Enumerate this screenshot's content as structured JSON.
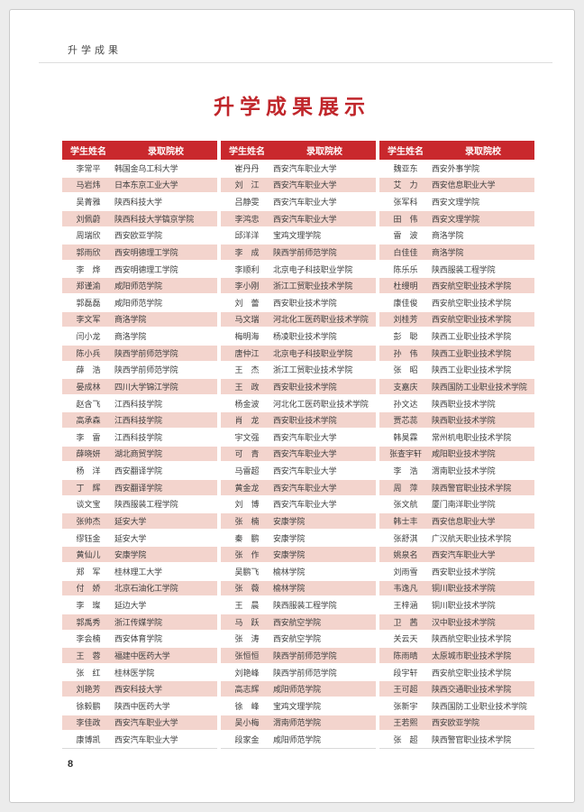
{
  "page": {
    "header_label": "升学成果",
    "title": "升学成果展示",
    "page_number": "8"
  },
  "table_headers": {
    "name": "学生姓名",
    "school": "录取院校"
  },
  "colors": {
    "accent_red": "#c0262b",
    "header_bar_red": "#c9282d",
    "row_pink": "#f3d4cd"
  },
  "columns": [
    {
      "rows": [
        {
          "name": "李常平",
          "school": "韩国金乌工科大学"
        },
        {
          "name": "马岩炜",
          "school": "日本东京工业大学"
        },
        {
          "name": "吴菁雅",
          "school": "陕西科技大学"
        },
        {
          "name": "刘佩蔚",
          "school": "陕西科技大学镐京学院"
        },
        {
          "name": "周瑞欣",
          "school": "西安欧亚学院"
        },
        {
          "name": "郭雨欣",
          "school": "西安明德理工学院"
        },
        {
          "name": "李　烨",
          "school": "西安明德理工学院"
        },
        {
          "name": "郑谨渝",
          "school": "咸阳师范学院"
        },
        {
          "name": "郭磊磊",
          "school": "咸阳师范学院"
        },
        {
          "name": "李文军",
          "school": "商洛学院"
        },
        {
          "name": "闫小龙",
          "school": "商洛学院"
        },
        {
          "name": "陈小兵",
          "school": "陕西学前师范学院"
        },
        {
          "name": "薛　浩",
          "school": "陕西学前师范学院"
        },
        {
          "name": "晏成林",
          "school": "四川大学锦江学院"
        },
        {
          "name": "赵含飞",
          "school": "江西科技学院"
        },
        {
          "name": "高承森",
          "school": "江西科技学院"
        },
        {
          "name": "李　雷",
          "school": "江西科技学院"
        },
        {
          "name": "薛晓妍",
          "school": "湖北商贸学院"
        },
        {
          "name": "杨　洋",
          "school": "西安翻译学院"
        },
        {
          "name": "丁　辉",
          "school": "西安翻译学院"
        },
        {
          "name": "谈文宝",
          "school": "陕西服装工程学院"
        },
        {
          "name": "张帅杰",
          "school": "延安大学"
        },
        {
          "name": "缪钰金",
          "school": "延安大学"
        },
        {
          "name": "黄仙儿",
          "school": "安康学院"
        },
        {
          "name": "郑　军",
          "school": "桂林理工大学"
        },
        {
          "name": "付　娇",
          "school": "北京石油化工学院"
        },
        {
          "name": "李　璨",
          "school": "延边大学"
        },
        {
          "name": "郭禹秀",
          "school": "浙江传媒学院"
        },
        {
          "name": "李会楠",
          "school": "西安体育学院"
        },
        {
          "name": "王　蓉",
          "school": "福建中医药大学"
        },
        {
          "name": "张　红",
          "school": "桂林医学院"
        },
        {
          "name": "刘艳芳",
          "school": "西安科技大学"
        },
        {
          "name": "徐毅鹏",
          "school": "陕西中医药大学"
        },
        {
          "name": "李佳政",
          "school": "西安汽车职业大学"
        },
        {
          "name": "康博凯",
          "school": "西安汽车职业大学"
        }
      ]
    },
    {
      "rows": [
        {
          "name": "崔丹丹",
          "school": "西安汽车职业大学"
        },
        {
          "name": "刘　江",
          "school": "西安汽车职业大学"
        },
        {
          "name": "吕静雯",
          "school": "西安汽车职业大学"
        },
        {
          "name": "李鸿忠",
          "school": "西安汽车职业大学"
        },
        {
          "name": "邱洋洋",
          "school": "宝鸡文理学院"
        },
        {
          "name": "李　成",
          "school": "陕西学前师范学院"
        },
        {
          "name": "李顺利",
          "school": "北京电子科技职业学院"
        },
        {
          "name": "李小刚",
          "school": "浙江工贸职业技术学院"
        },
        {
          "name": "刘　蕾",
          "school": "西安职业技术学院"
        },
        {
          "name": "马文瑞",
          "school": "河北化工医药职业技术学院"
        },
        {
          "name": "梅明海",
          "school": "杨凌职业技术学院"
        },
        {
          "name": "唐仲江",
          "school": "北京电子科技职业学院"
        },
        {
          "name": "王　杰",
          "school": "浙江工贸职业技术学院"
        },
        {
          "name": "王　政",
          "school": "西安职业技术学院"
        },
        {
          "name": "杨金波",
          "school": "河北化工医药职业技术学院"
        },
        {
          "name": "肖　龙",
          "school": "西安职业技术学院"
        },
        {
          "name": "宇文强",
          "school": "西安汽车职业大学"
        },
        {
          "name": "可　青",
          "school": "西安汽车职业大学"
        },
        {
          "name": "马雷超",
          "school": "西安汽车职业大学"
        },
        {
          "name": "黄金龙",
          "school": "西安汽车职业大学"
        },
        {
          "name": "刘　博",
          "school": "西安汽车职业大学"
        },
        {
          "name": "张　楠",
          "school": "安康学院"
        },
        {
          "name": "秦　鹏",
          "school": "安康学院"
        },
        {
          "name": "张　作",
          "school": "安康学院"
        },
        {
          "name": "吴鹏飞",
          "school": "榆林学院"
        },
        {
          "name": "张　薇",
          "school": "榆林学院"
        },
        {
          "name": "王　晨",
          "school": "陕西服装工程学院"
        },
        {
          "name": "马　跃",
          "school": "西安航空学院"
        },
        {
          "name": "张　涛",
          "school": "西安航空学院"
        },
        {
          "name": "张恒恒",
          "school": "陕西学前师范学院"
        },
        {
          "name": "刘艳峰",
          "school": "陕西学前师范学院"
        },
        {
          "name": "高志辉",
          "school": "咸阳师范学院"
        },
        {
          "name": "徐　峰",
          "school": "宝鸡文理学院"
        },
        {
          "name": "吴小梅",
          "school": "渭南师范学院"
        },
        {
          "name": "段家金",
          "school": "咸阳师范学院"
        }
      ]
    },
    {
      "rows": [
        {
          "name": "魏亚东",
          "school": "西安外事学院"
        },
        {
          "name": "艾　力",
          "school": "西安信息职业大学"
        },
        {
          "name": "张军科",
          "school": "西安文理学院"
        },
        {
          "name": "田　伟",
          "school": "西安文理学院"
        },
        {
          "name": "雷　波",
          "school": "商洛学院"
        },
        {
          "name": "白佳佳",
          "school": "商洛学院"
        },
        {
          "name": "陈乐乐",
          "school": "陕西服装工程学院"
        },
        {
          "name": "杜缦明",
          "school": "西安航空职业技术学院"
        },
        {
          "name": "康佳俊",
          "school": "西安航空职业技术学院"
        },
        {
          "name": "刘桂芳",
          "school": "西安航空职业技术学院"
        },
        {
          "name": "彭　聪",
          "school": "陕西工业职业技术学院"
        },
        {
          "name": "孙　伟",
          "school": "陕西工业职业技术学院"
        },
        {
          "name": "张　昭",
          "school": "陕西工业职业技术学院"
        },
        {
          "name": "支嘉庆",
          "school": "陕西国防工业职业技术学院"
        },
        {
          "name": "孙文达",
          "school": "陕西职业技术学院"
        },
        {
          "name": "贾芯蕊",
          "school": "陕西职业技术学院"
        },
        {
          "name": "韩昊霖",
          "school": "常州机电职业技术学院"
        },
        {
          "name": "张查宇轩",
          "school": "咸阳职业技术学院"
        },
        {
          "name": "李　浩",
          "school": "渭南职业技术学院"
        },
        {
          "name": "周　萍",
          "school": "陕西警官职业技术学院"
        },
        {
          "name": "张文航",
          "school": "厦门南洋职业学院"
        },
        {
          "name": "韩士丰",
          "school": "西安信息职业大学"
        },
        {
          "name": "张舒淇",
          "school": "广汉航天职业技术学院"
        },
        {
          "name": "姚泉名",
          "school": "西安汽车职业大学"
        },
        {
          "name": "刘雨雪",
          "school": "西安职业技术学院"
        },
        {
          "name": "韦逸凡",
          "school": "铜川职业技术学院"
        },
        {
          "name": "王梓涵",
          "school": "铜川职业技术学院"
        },
        {
          "name": "卫　茜",
          "school": "汉中职业技术学院"
        },
        {
          "name": "关云天",
          "school": "陕西航空职业技术学院"
        },
        {
          "name": "陈雨晴",
          "school": "太原城市职业技术学院"
        },
        {
          "name": "段宇轩",
          "school": "西安航空职业技术学院"
        },
        {
          "name": "王可超",
          "school": "陕西交通职业技术学院"
        },
        {
          "name": "张新宇",
          "school": "陕西国防工业职业技术学院"
        },
        {
          "name": "王若熙",
          "school": "西安欧亚学院"
        },
        {
          "name": "张　超",
          "school": "陕西警官职业技术学院"
        }
      ]
    }
  ]
}
